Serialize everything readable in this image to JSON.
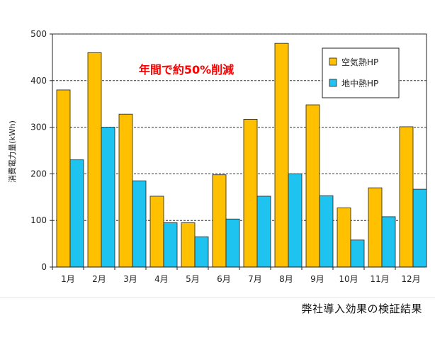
{
  "chart_data": {
    "type": "bar",
    "title": "",
    "ylabel": "消費電力量(kWh)",
    "xlabel": "",
    "categories": [
      "1月",
      "2月",
      "3月",
      "4月",
      "5月",
      "6月",
      "7月",
      "8月",
      "9月",
      "10月",
      "11月",
      "12月"
    ],
    "series": [
      {
        "name": "空気熱HP",
        "color": "#FFC000",
        "values": [
          380,
          460,
          328,
          152,
          95,
          198,
          317,
          480,
          348,
          127,
          170,
          301
        ]
      },
      {
        "name": "地中熱HP",
        "color": "#1FC3F0",
        "values": [
          230,
          300,
          185,
          95,
          65,
          103,
          152,
          200,
          153,
          58,
          108,
          167
        ]
      }
    ],
    "ylim": [
      0,
      500
    ],
    "yticks": [
      0,
      100,
      200,
      300,
      400,
      500
    ],
    "grid": true,
    "legend": "top-right",
    "annotation": "年間で約50%削減",
    "annotation_color": "#FF0000"
  },
  "caption": "弊社導入効果の検証結果"
}
